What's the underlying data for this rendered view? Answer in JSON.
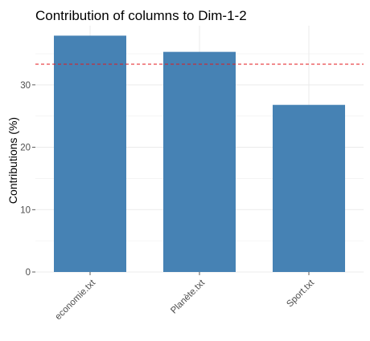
{
  "chart_data": {
    "type": "bar",
    "title": "Contribution of columns to Dim-1-2",
    "xlabel": "",
    "ylabel": "Contributions (%)",
    "categories": [
      "economie.txt",
      "Planète.txt",
      "Sport.txt"
    ],
    "values": [
      37.9,
      35.3,
      26.8
    ],
    "ylim": [
      0,
      39.5
    ],
    "yticks": [
      0,
      10,
      20,
      30
    ],
    "reference_line": 33.33,
    "grid": true,
    "bar_color": "#4682b4",
    "reference_line_color": "#e31a1c"
  }
}
